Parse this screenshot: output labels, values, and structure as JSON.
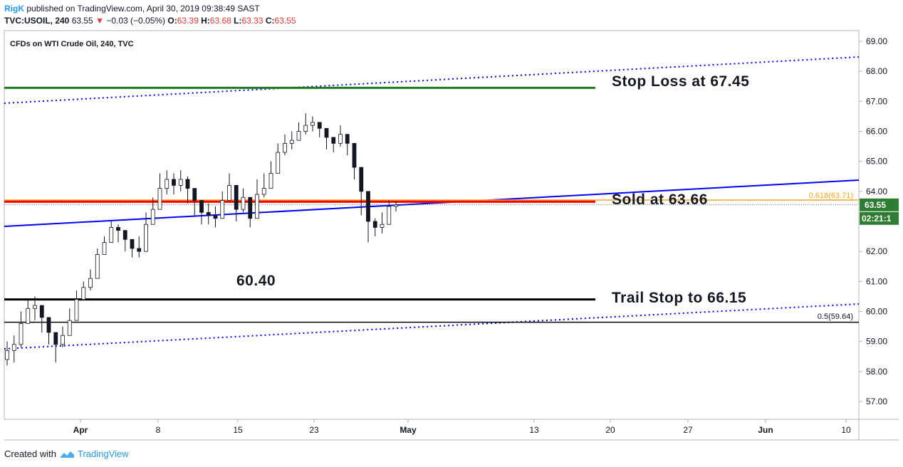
{
  "header": {
    "user": "RigK",
    "published": "published on TradingView.com, April 30, 2019 09:38:49 SAST",
    "symbol": "TVC:USOIL, 240",
    "last": "63.55",
    "change": "−0.03 (−0.05%)",
    "o_label": "O:",
    "o_val": "63.39",
    "h_label": "H:",
    "h_val": "63.68",
    "l_label": "L:",
    "l_val": "63.33",
    "c_label": "C:",
    "c_val": "63.55"
  },
  "footer": {
    "created_with": "Created with",
    "brand": "TradingView"
  },
  "colors": {
    "up": "#131722",
    "down": "#131722",
    "trend_blue": "#0000ff",
    "red_line": "#ff0000",
    "orange_fib": "#f5a623",
    "green_line": "#217a21",
    "price_tag_bg": "#2e7d32"
  },
  "chart_data": {
    "type": "candlestick",
    "title": "CFDs on WTI Crude Oil, 240, TVC",
    "ylim": [
      56.5,
      69.3
    ],
    "y_ticks": [
      "57.00",
      "58.00",
      "59.00",
      "60.00",
      "61.00",
      "62.00",
      "63.00",
      "64.00",
      "65.00",
      "66.00",
      "67.00",
      "68.00",
      "69.00"
    ],
    "x_ticks": [
      "Apr",
      "8",
      "15",
      "23",
      "May",
      "13",
      "20",
      "27",
      "Jun",
      "10"
    ],
    "last_price": "63.55",
    "countdown": "02:21:1",
    "fib_labels": {
      "f618": "0.618(63.71)",
      "f05": "0.5(59.64)"
    },
    "annotations": {
      "stop_loss": "Stop Loss at 67.45",
      "sold": "Sold at 63.66",
      "trail": "Trail Stop to 66.15",
      "level": "60.40"
    },
    "levels": {
      "stop_loss": 67.45,
      "sold": 63.66,
      "trail": 60.4,
      "fib_05": 59.64,
      "fib_618": 63.71
    },
    "closes": [
      58.7,
      58.9,
      59.6,
      60.1,
      60.2,
      59.8,
      59.3,
      58.9,
      59.2,
      59.7,
      60.4,
      60.8,
      61.1,
      61.9,
      62.3,
      62.8,
      62.7,
      62.4,
      62.1,
      62.0,
      62.9,
      63.4,
      64.1,
      64.4,
      64.2,
      64.4,
      64.1,
      63.7,
      63.3,
      63.2,
      63.1,
      63.7,
      64.2,
      63.4,
      63.8,
      63.1,
      63.9,
      64.1,
      64.6,
      65.3,
      65.6,
      65.7,
      66.0,
      66.2,
      66.3,
      66.1,
      65.8,
      65.6,
      65.9,
      65.6,
      64.8,
      64.0,
      63.0,
      62.8,
      62.9,
      63.5,
      63.55
    ],
    "highs": [
      59.0,
      59.2,
      60.0,
      60.4,
      60.5,
      60.1,
      59.6,
      59.3,
      59.5,
      60.1,
      60.7,
      61.0,
      61.4,
      62.1,
      62.5,
      63.0,
      62.9,
      62.7,
      62.4,
      62.5,
      63.3,
      63.8,
      64.6,
      64.7,
      64.6,
      64.7,
      64.5,
      64.0,
      63.7,
      63.6,
      63.5,
      64.0,
      64.6,
      63.8,
      64.1,
      63.6,
      64.4,
      64.6,
      65.0,
      65.6,
      65.9,
      66.0,
      66.3,
      66.6,
      66.5,
      66.3,
      66.1,
      65.8,
      66.2,
      65.9,
      65.0,
      64.3,
      63.6,
      63.1,
      63.3,
      63.7,
      63.68
    ],
    "lows": [
      58.2,
      58.3,
      58.8,
      59.6,
      59.7,
      59.3,
      58.9,
      58.3,
      58.8,
      59.2,
      60.0,
      60.4,
      60.7,
      61.4,
      62.0,
      62.4,
      62.3,
      62.0,
      61.8,
      61.8,
      62.6,
      63.1,
      63.6,
      63.9,
      63.9,
      64.0,
      63.6,
      63.2,
      62.9,
      62.9,
      62.8,
      63.2,
      63.7,
      63.0,
      63.3,
      62.8,
      63.5,
      63.8,
      64.1,
      64.9,
      65.2,
      65.4,
      65.7,
      65.9,
      66.0,
      65.8,
      65.4,
      65.3,
      65.5,
      65.2,
      64.4,
      63.2,
      62.3,
      62.5,
      62.6,
      63.0,
      63.33
    ]
  }
}
